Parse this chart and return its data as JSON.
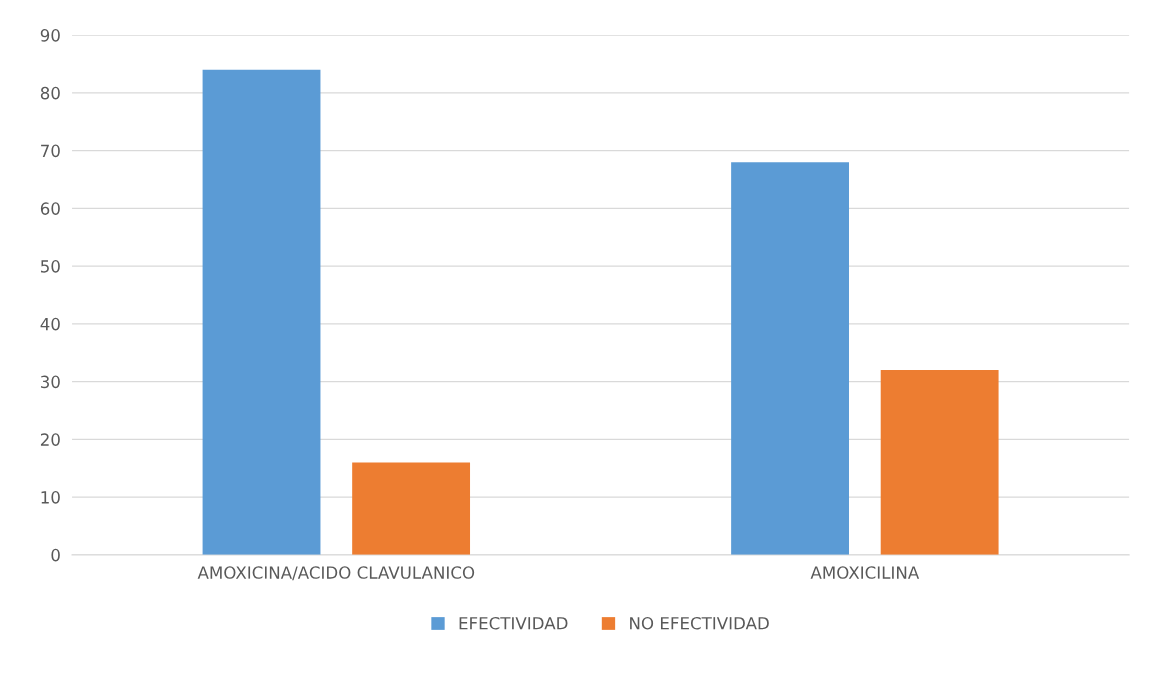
{
  "chart_data": {
    "type": "bar",
    "categories": [
      "AMOXICINA/ACIDO CLAVULANICO",
      "AMOXICILINA"
    ],
    "series": [
      {
        "name": "EFECTIVIDAD",
        "color": "#5b9bd5",
        "values": [
          84,
          68
        ]
      },
      {
        "name": "NO EFECTIVIDAD",
        "color": "#ed7d31",
        "values": [
          16,
          32
        ]
      }
    ],
    "ylim": [
      0,
      90
    ],
    "yticks": [
      0,
      10,
      20,
      30,
      40,
      50,
      60,
      70,
      80,
      90
    ],
    "grid": "y",
    "legend": "bottom"
  }
}
